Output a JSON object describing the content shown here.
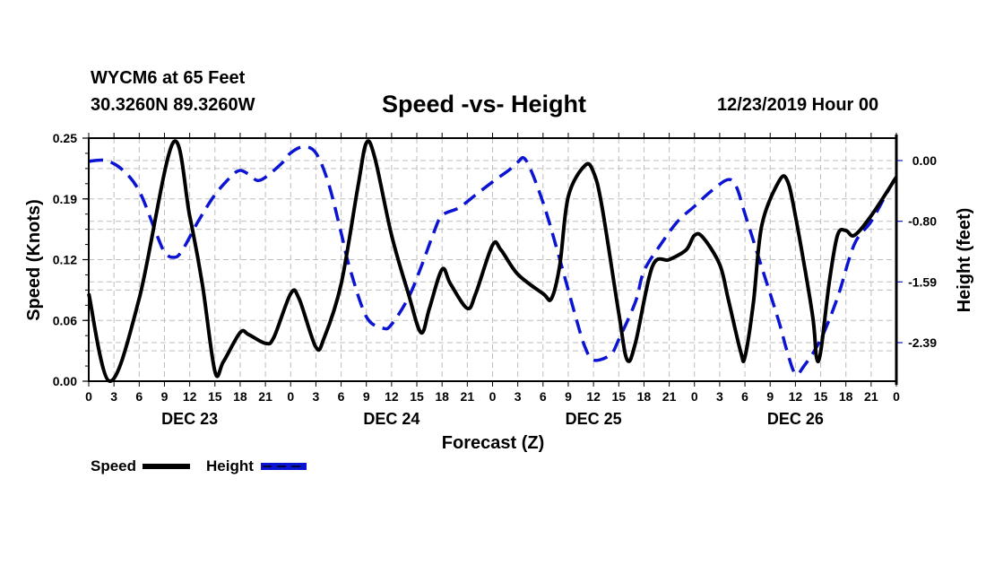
{
  "header": {
    "station": "WYCM6 at 65 Feet",
    "coords": "30.3260N 89.3260W",
    "title": "Speed -vs- Height",
    "date": "12/23/2019 Hour 00"
  },
  "colors": {
    "speed": "#000000",
    "height": "#0a14d2",
    "grid": "#bdbdbd"
  },
  "chart_data": {
    "type": "line",
    "title": "Speed -vs- Height",
    "xlabel": "Forecast (Z)",
    "ylabel": "Speed (Knots)",
    "y2label": "Height (feet)",
    "xlim_hours": [
      0,
      96
    ],
    "ylim": [
      0.0,
      0.25
    ],
    "y2lim_ref": [
      0.0,
      -2.39
    ],
    "grid": true,
    "legend_placement": "bottom-left",
    "x_tick_labels": [
      "0",
      "3",
      "6",
      "9",
      "12",
      "15",
      "18",
      "21",
      "0",
      "3",
      "6",
      "9",
      "12",
      "15",
      "18",
      "21",
      "0",
      "3",
      "6",
      "9",
      "12",
      "15",
      "18",
      "21",
      "0",
      "3",
      "6",
      "9",
      "12",
      "15",
      "18",
      "21",
      "0"
    ],
    "day_labels": [
      {
        "label": "DEC 23",
        "hour": 12
      },
      {
        "label": "DEC 24",
        "hour": 36
      },
      {
        "label": "DEC 25",
        "hour": 60
      },
      {
        "label": "DEC 26",
        "hour": 84
      }
    ],
    "y_tick_labels": [
      "0.00",
      "0.06",
      "0.12",
      "0.19",
      "0.25"
    ],
    "y_tick_values": [
      0.0,
      0.0625,
      0.125,
      0.1875,
      0.25
    ],
    "y2_tick_labels": [
      "0.00",
      "-0.80",
      "-1.59",
      "-2.39"
    ],
    "y2_tick_values": [
      0.0,
      -0.797,
      -1.593,
      -2.39
    ],
    "series": [
      {
        "name": "Speed",
        "axis": "left",
        "style": "solid",
        "points": [
          [
            0,
            0.09
          ],
          [
            2.5,
            0.0
          ],
          [
            6,
            0.085
          ],
          [
            10,
            0.245
          ],
          [
            12,
            0.17
          ],
          [
            13.5,
            0.1
          ],
          [
            15,
            0.01
          ],
          [
            16,
            0.02
          ],
          [
            18,
            0.05
          ],
          [
            19,
            0.048
          ],
          [
            21,
            0.039
          ],
          [
            22,
            0.045
          ],
          [
            24,
            0.09
          ],
          [
            25,
            0.085
          ],
          [
            27,
            0.035
          ],
          [
            28,
            0.045
          ],
          [
            30,
            0.1
          ],
          [
            32,
            0.2
          ],
          [
            33,
            0.245
          ],
          [
            34,
            0.23
          ],
          [
            36,
            0.15
          ],
          [
            38,
            0.09
          ],
          [
            39.5,
            0.05
          ],
          [
            40.5,
            0.075
          ],
          [
            42,
            0.115
          ],
          [
            43,
            0.1
          ],
          [
            45,
            0.075
          ],
          [
            46,
            0.09
          ],
          [
            48,
            0.14
          ],
          [
            49,
            0.135
          ],
          [
            51,
            0.11
          ],
          [
            54,
            0.09
          ],
          [
            55,
            0.085
          ],
          [
            56,
            0.12
          ],
          [
            57,
            0.19
          ],
          [
            59,
            0.222
          ],
          [
            60,
            0.215
          ],
          [
            61,
            0.18
          ],
          [
            63,
            0.07
          ],
          [
            64,
            0.022
          ],
          [
            65,
            0.04
          ],
          [
            67,
            0.118
          ],
          [
            69,
            0.125
          ],
          [
            71,
            0.135
          ],
          [
            72,
            0.15
          ],
          [
            73,
            0.148
          ],
          [
            75,
            0.12
          ],
          [
            76,
            0.085
          ],
          [
            77.5,
            0.03
          ],
          [
            78,
            0.025
          ],
          [
            79,
            0.08
          ],
          [
            80,
            0.16
          ],
          [
            82,
            0.205
          ],
          [
            83,
            0.207
          ],
          [
            84,
            0.17
          ],
          [
            86,
            0.07
          ],
          [
            86.5,
            0.025
          ],
          [
            87,
            0.03
          ],
          [
            88,
            0.1
          ],
          [
            89,
            0.15
          ],
          [
            90,
            0.155
          ],
          [
            91,
            0.15
          ],
          [
            93,
            0.17
          ],
          [
            96,
            0.21
          ]
        ]
      },
      {
        "name": "Height",
        "axis": "right",
        "style": "dashed",
        "points": [
          [
            0,
            -0.01
          ],
          [
            2,
            0.0
          ],
          [
            4,
            -0.12
          ],
          [
            6,
            -0.4
          ],
          [
            8,
            -0.95
          ],
          [
            9,
            -1.2
          ],
          [
            10,
            -1.27
          ],
          [
            11,
            -1.2
          ],
          [
            13,
            -0.8
          ],
          [
            15,
            -0.45
          ],
          [
            17,
            -0.2
          ],
          [
            18,
            -0.13
          ],
          [
            19,
            -0.18
          ],
          [
            20,
            -0.26
          ],
          [
            21,
            -0.22
          ],
          [
            23,
            -0.03
          ],
          [
            24,
            0.1
          ],
          [
            25.5,
            0.18
          ],
          [
            27,
            0.1
          ],
          [
            28.5,
            -0.3
          ],
          [
            30,
            -0.95
          ],
          [
            31,
            -1.4
          ],
          [
            33,
            -2.05
          ],
          [
            35,
            -2.2
          ],
          [
            36,
            -2.15
          ],
          [
            38,
            -1.8
          ],
          [
            39.5,
            -1.4
          ],
          [
            41,
            -0.95
          ],
          [
            42,
            -0.72
          ],
          [
            44,
            -0.62
          ],
          [
            46,
            -0.45
          ],
          [
            48,
            -0.28
          ],
          [
            50,
            -0.12
          ],
          [
            51,
            -0.02
          ],
          [
            52,
            0.0
          ],
          [
            54,
            -0.55
          ],
          [
            56,
            -1.3
          ],
          [
            58,
            -2.1
          ],
          [
            59,
            -2.45
          ],
          [
            60,
            -2.62
          ],
          [
            62,
            -2.55
          ],
          [
            63,
            -2.35
          ],
          [
            65,
            -1.85
          ],
          [
            66,
            -1.45
          ],
          [
            68,
            -1.1
          ],
          [
            70,
            -0.8
          ],
          [
            72,
            -0.6
          ],
          [
            74,
            -0.4
          ],
          [
            76,
            -0.25
          ],
          [
            77,
            -0.35
          ],
          [
            78,
            -0.7
          ],
          [
            80,
            -1.4
          ],
          [
            82,
            -2.1
          ],
          [
            83,
            -2.5
          ],
          [
            84,
            -2.8
          ],
          [
            85,
            -2.7
          ],
          [
            87,
            -2.35
          ],
          [
            89,
            -1.8
          ],
          [
            91,
            -1.1
          ],
          [
            93,
            -0.8
          ],
          [
            95,
            -0.4
          ],
          [
            96,
            -0.2
          ]
        ]
      }
    ]
  },
  "legend": {
    "speed_label": "Speed",
    "height_label": "Height"
  }
}
